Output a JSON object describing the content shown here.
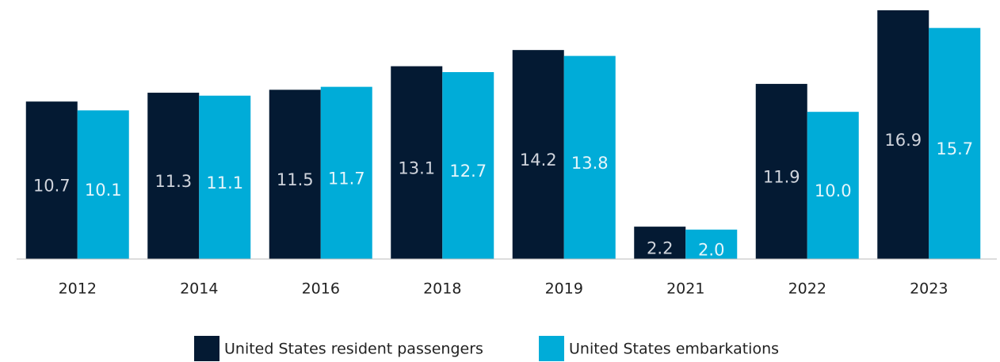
{
  "chart_data": {
    "type": "bar",
    "categories": [
      "2012",
      "2014",
      "2016",
      "2018",
      "2019",
      "2021",
      "2022",
      "2023"
    ],
    "series": [
      {
        "name": "United States resident passengers",
        "color": "#041a33",
        "values": [
          10.7,
          11.3,
          11.5,
          13.1,
          14.2,
          2.2,
          11.9,
          16.9
        ]
      },
      {
        "name": "United States embarkations",
        "color": "#00acd8",
        "values": [
          10.1,
          11.1,
          11.7,
          12.7,
          13.8,
          2.0,
          10.0,
          15.7
        ],
        "value_labels": [
          "10.1",
          "11.1",
          "11.7",
          "12.7",
          "13.8",
          "2.0",
          "10.0",
          "15.7"
        ]
      }
    ],
    "legend": "bottom"
  }
}
